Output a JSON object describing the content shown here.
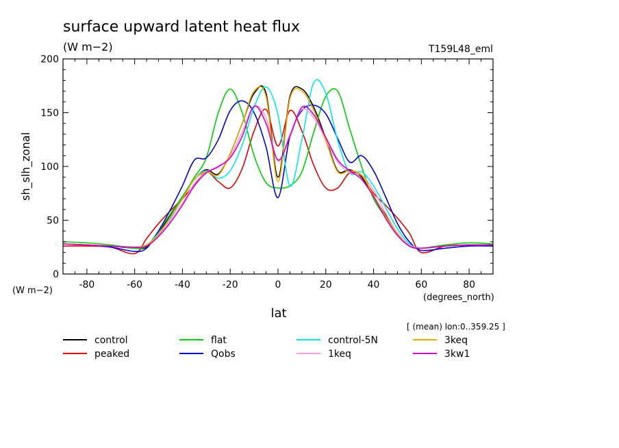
{
  "title": "surface upward latent heat flux",
  "subtitle": "(W m−2)",
  "run_label": "T159L48_eml",
  "ylabel": "sh_slh_zonal",
  "xlabel": "lat",
  "y_units": "(W m−2)",
  "x_units": "(degrees_north)",
  "mean_note": "[ (mean) lon:0..359.25 ]",
  "chart_data": {
    "type": "line",
    "title": "surface upward latent heat flux",
    "subtitle": "(W m−2)",
    "xlabel": "lat",
    "ylabel": "sh_slh_zonal",
    "xlim": [
      -90,
      90
    ],
    "ylim": [
      0,
      200
    ],
    "xticks": [
      -80,
      -60,
      -40,
      -20,
      0,
      20,
      40,
      60,
      80
    ],
    "yticks": [
      0,
      50,
      100,
      150,
      200
    ],
    "grid": false,
    "legend_position": "bottom",
    "x": [
      -90,
      -80,
      -70,
      -60,
      -55,
      -50,
      -45,
      -40,
      -35,
      -30,
      -25,
      -20,
      -15,
      -10,
      -5,
      0,
      5,
      10,
      15,
      20,
      25,
      30,
      35,
      40,
      45,
      50,
      55,
      60,
      70,
      80,
      90
    ],
    "series": [
      {
        "name": "control",
        "color": "#000000",
        "values": [
          28,
          27,
          26,
          24,
          25,
          38,
          55,
          72,
          88,
          97,
          93,
          112,
          140,
          168,
          168,
          90,
          165,
          172,
          155,
          126,
          96,
          97,
          90,
          72,
          55,
          38,
          26,
          24,
          26,
          27,
          27
        ]
      },
      {
        "name": "peaked",
        "color": "#e00000",
        "values": [
          26,
          26,
          25,
          19,
          33,
          47,
          59,
          70,
          83,
          95,
          86,
          80,
          98,
          133,
          153,
          119,
          152,
          133,
          101,
          80,
          80,
          94,
          91,
          75,
          64,
          52,
          38,
          20,
          26,
          27,
          27
        ]
      },
      {
        "name": "flat",
        "color": "#00cc00",
        "values": [
          30,
          29,
          27,
          24,
          26,
          40,
          56,
          72,
          90,
          108,
          150,
          172,
          150,
          110,
          85,
          80,
          82,
          95,
          132,
          165,
          170,
          135,
          100,
          70,
          53,
          38,
          26,
          24,
          27,
          29,
          28
        ]
      },
      {
        "name": "Qobs",
        "color": "#0000cc",
        "values": [
          28,
          27,
          25,
          21,
          24,
          40,
          60,
          82,
          106,
          108,
          125,
          152,
          161,
          150,
          118,
          71,
          128,
          152,
          157,
          149,
          126,
          104,
          110,
          96,
          72,
          47,
          30,
          22,
          24,
          26,
          26
        ]
      },
      {
        "name": "control-5N",
        "color": "#00e8e8",
        "values": [
          28,
          27,
          26,
          25,
          27,
          38,
          52,
          70,
          88,
          96,
          89,
          96,
          120,
          155,
          174,
          148,
          82,
          125,
          178,
          168,
          124,
          94,
          95,
          82,
          62,
          42,
          28,
          24,
          26,
          27,
          27
        ]
      },
      {
        "name": "1keq",
        "color": "#f0a0e0",
        "values": [
          28,
          27,
          26,
          25,
          27,
          36,
          50,
          66,
          84,
          95,
          99,
          110,
          132,
          156,
          145,
          105,
          130,
          153,
          145,
          125,
          104,
          94,
          92,
          78,
          57,
          38,
          27,
          24,
          26,
          27,
          27
        ]
      },
      {
        "name": "3keq",
        "color": "#f0a800",
        "values": [
          28,
          27,
          26,
          25,
          27,
          37,
          53,
          70,
          88,
          95,
          92,
          112,
          140,
          170,
          165,
          86,
          163,
          170,
          152,
          124,
          95,
          96,
          92,
          73,
          54,
          37,
          26,
          24,
          26,
          27,
          27
        ]
      },
      {
        "name": "3kw1",
        "color": "#d000c0",
        "values": [
          28,
          27,
          26,
          25,
          26,
          35,
          48,
          64,
          82,
          94,
          100,
          108,
          128,
          156,
          140,
          106,
          128,
          155,
          148,
          127,
          106,
          96,
          88,
          72,
          52,
          36,
          26,
          24,
          26,
          27,
          27
        ]
      }
    ]
  }
}
